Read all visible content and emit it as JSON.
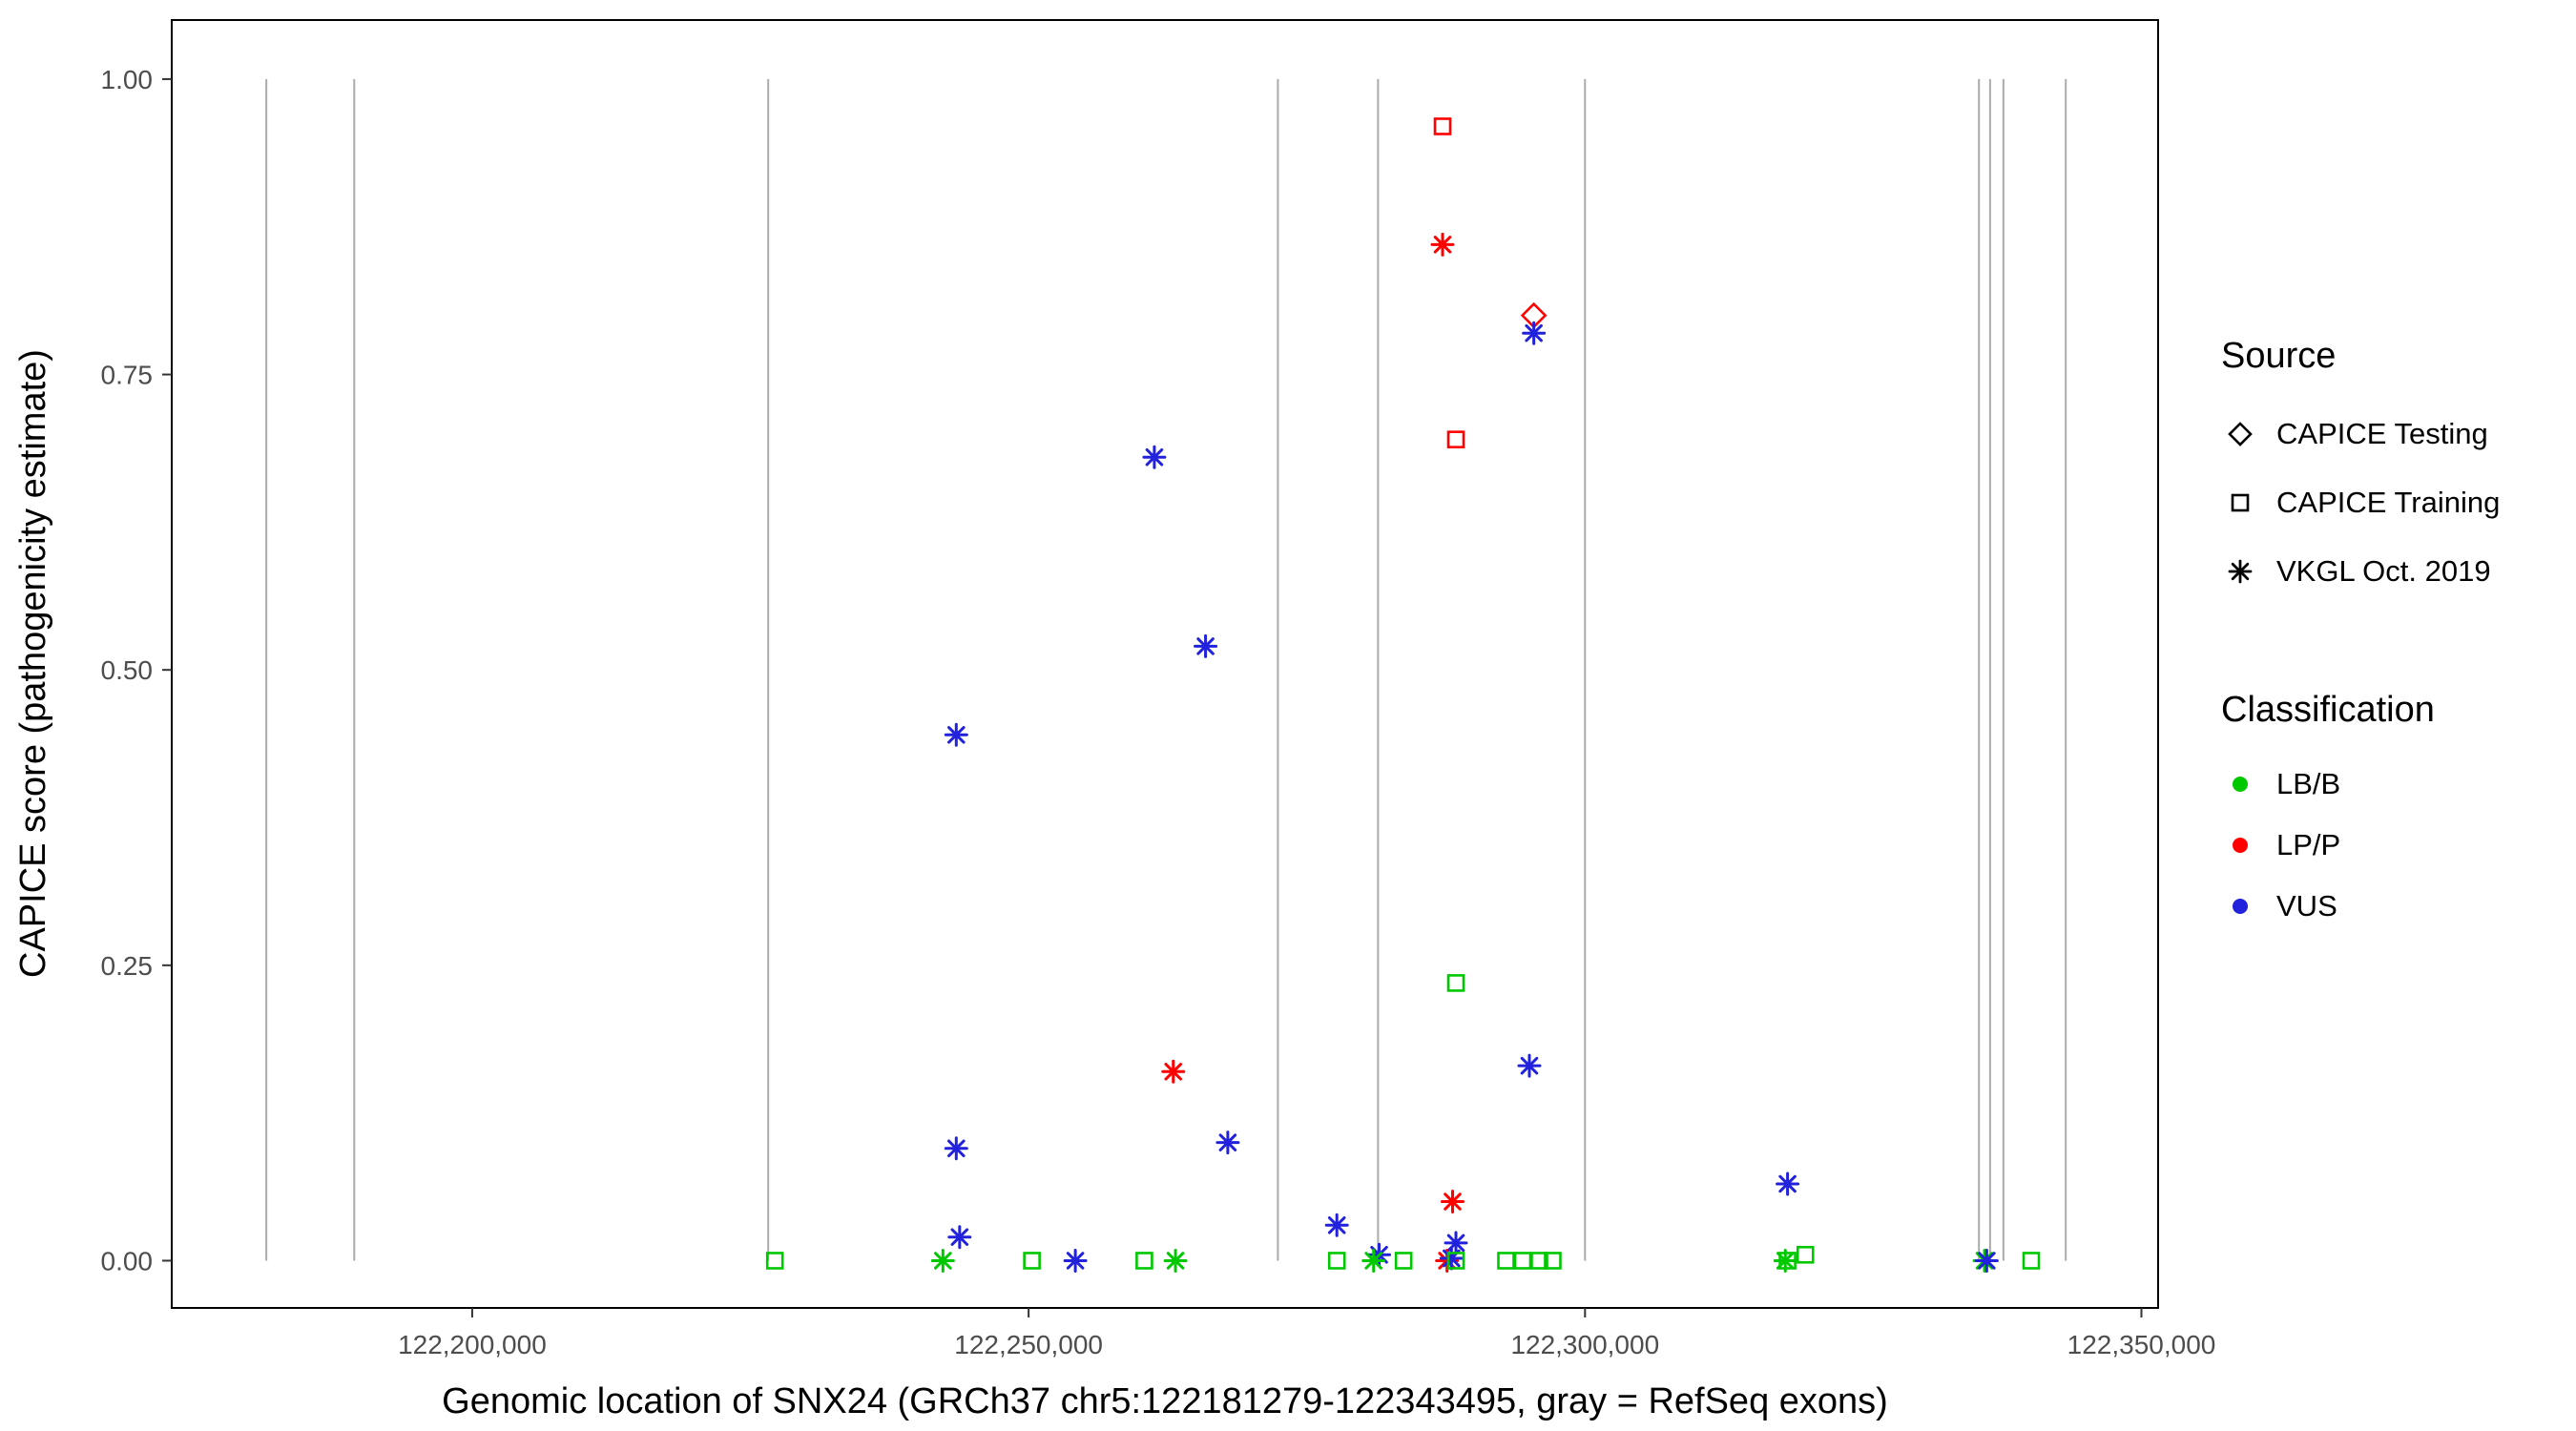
{
  "figure": {
    "xlabel": "Genomic location of SNX24 (GRCh37 chr5:122181279-122343495, gray = RefSeq exons)",
    "ylabel": "CAPICE score (pathogenicity estimate)"
  },
  "legend": {
    "source": {
      "title": "Source",
      "items": [
        {
          "label": "CAPICE Testing",
          "shape": "diamond"
        },
        {
          "label": "CAPICE Training",
          "shape": "square"
        },
        {
          "label": "VKGL Oct. 2019",
          "shape": "asterisk"
        }
      ]
    },
    "classification": {
      "title": "Classification",
      "items": [
        {
          "label": "LB/B",
          "color": "#00C800"
        },
        {
          "label": "LP/P",
          "color": "#FF0000"
        },
        {
          "label": "VUS",
          "color": "#2222DD"
        }
      ]
    }
  },
  "chart_data": {
    "type": "scatter",
    "title": "",
    "xlabel": "Genomic location of SNX24 (GRCh37 chr5:122181279-122343495, gray = RefSeq exons)",
    "ylabel": "CAPICE score (pathogenicity estimate)",
    "xlim": [
      122173000,
      122351500
    ],
    "ylim": [
      -0.04,
      1.05
    ],
    "grid": false,
    "legend_position": "right",
    "x_ticks": [
      {
        "value": 122200000,
        "label": "122,200,000"
      },
      {
        "value": 122250000,
        "label": "122,250,000"
      },
      {
        "value": 122300000,
        "label": "122,300,000"
      },
      {
        "value": 122350000,
        "label": "122,350,000"
      }
    ],
    "y_ticks": [
      {
        "value": 0.0,
        "label": "0.00"
      },
      {
        "value": 0.25,
        "label": "0.25"
      },
      {
        "value": 0.5,
        "label": "0.50"
      },
      {
        "value": 0.75,
        "label": "0.75"
      },
      {
        "value": 1.0,
        "label": "1.00"
      }
    ],
    "exon_lines": {
      "color": "#ABABAB",
      "y_extent": [
        0,
        1
      ],
      "positions": [
        122181500,
        122189400,
        122226600,
        122272400,
        122281400,
        122300000,
        122335400,
        122336400,
        122337600,
        122343200
      ]
    },
    "colors": {
      "LB/B": "#00C800",
      "LP/P": "#FF0000",
      "VUS": "#2222DD"
    },
    "shapes": {
      "CAPICE Testing": "diamond",
      "CAPICE Training": "square",
      "VKGL Oct. 2019": "asterisk"
    },
    "points": [
      {
        "x": 122287200,
        "y": 0.96,
        "source": "CAPICE Training",
        "classification": "LP/P"
      },
      {
        "x": 122287200,
        "y": 0.86,
        "source": "VKGL Oct. 2019",
        "classification": "LP/P"
      },
      {
        "x": 122295400,
        "y": 0.8,
        "source": "CAPICE Testing",
        "classification": "LP/P"
      },
      {
        "x": 122295400,
        "y": 0.785,
        "source": "VKGL Oct. 2019",
        "classification": "VUS"
      },
      {
        "x": 122288400,
        "y": 0.695,
        "source": "CAPICE Training",
        "classification": "LP/P"
      },
      {
        "x": 122261300,
        "y": 0.68,
        "source": "VKGL Oct. 2019",
        "classification": "VUS"
      },
      {
        "x": 122265900,
        "y": 0.52,
        "source": "VKGL Oct. 2019",
        "classification": "VUS"
      },
      {
        "x": 122243500,
        "y": 0.445,
        "source": "VKGL Oct. 2019",
        "classification": "VUS"
      },
      {
        "x": 122288400,
        "y": 0.235,
        "source": "CAPICE Training",
        "classification": "LB/B"
      },
      {
        "x": 122295000,
        "y": 0.165,
        "source": "VKGL Oct. 2019",
        "classification": "VUS"
      },
      {
        "x": 122263000,
        "y": 0.16,
        "source": "VKGL Oct. 2019",
        "classification": "LP/P"
      },
      {
        "x": 122267900,
        "y": 0.1,
        "source": "VKGL Oct. 2019",
        "classification": "VUS"
      },
      {
        "x": 122243500,
        "y": 0.095,
        "source": "VKGL Oct. 2019",
        "classification": "VUS"
      },
      {
        "x": 122318200,
        "y": 0.065,
        "source": "VKGL Oct. 2019",
        "classification": "VUS"
      },
      {
        "x": 122288100,
        "y": 0.05,
        "source": "VKGL Oct. 2019",
        "classification": "LP/P"
      },
      {
        "x": 122277700,
        "y": 0.03,
        "source": "VKGL Oct. 2019",
        "classification": "VUS"
      },
      {
        "x": 122243800,
        "y": 0.02,
        "source": "VKGL Oct. 2019",
        "classification": "VUS"
      },
      {
        "x": 122288400,
        "y": 0.015,
        "source": "VKGL Oct. 2019",
        "classification": "VUS"
      },
      {
        "x": 122281500,
        "y": 0.005,
        "source": "VKGL Oct. 2019",
        "classification": "VUS"
      },
      {
        "x": 122319800,
        "y": 0.005,
        "source": "CAPICE Training",
        "classification": "LB/B"
      },
      {
        "x": 122227200,
        "y": 0,
        "source": "CAPICE Training",
        "classification": "LB/B"
      },
      {
        "x": 122242300,
        "y": 0,
        "source": "VKGL Oct. 2019",
        "classification": "LB/B"
      },
      {
        "x": 122250300,
        "y": 0,
        "source": "CAPICE Training",
        "classification": "LB/B"
      },
      {
        "x": 122254200,
        "y": 0,
        "source": "VKGL Oct. 2019",
        "classification": "VUS"
      },
      {
        "x": 122260400,
        "y": 0,
        "source": "CAPICE Training",
        "classification": "LB/B"
      },
      {
        "x": 122263200,
        "y": 0,
        "source": "VKGL Oct. 2019",
        "classification": "LB/B"
      },
      {
        "x": 122277700,
        "y": 0,
        "source": "CAPICE Training",
        "classification": "LB/B"
      },
      {
        "x": 122281000,
        "y": 0,
        "source": "VKGL Oct. 2019",
        "classification": "LB/B"
      },
      {
        "x": 122283700,
        "y": 0,
        "source": "CAPICE Training",
        "classification": "LB/B"
      },
      {
        "x": 122287600,
        "y": 0,
        "source": "VKGL Oct. 2019",
        "classification": "LP/P"
      },
      {
        "x": 122288000,
        "y": 0.002,
        "source": "VKGL Oct. 2019",
        "classification": "VUS"
      },
      {
        "x": 122288400,
        "y": 0,
        "source": "CAPICE Training",
        "classification": "LB/B"
      },
      {
        "x": 122292900,
        "y": 0,
        "source": "CAPICE Training",
        "classification": "LB/B"
      },
      {
        "x": 122294400,
        "y": 0,
        "source": "CAPICE Training",
        "classification": "LB/B"
      },
      {
        "x": 122295900,
        "y": 0,
        "source": "CAPICE Training",
        "classification": "LB/B"
      },
      {
        "x": 122297100,
        "y": 0,
        "source": "CAPICE Training",
        "classification": "LB/B"
      },
      {
        "x": 122318000,
        "y": 0,
        "source": "VKGL Oct. 2019",
        "classification": "LB/B"
      },
      {
        "x": 122318200,
        "y": 0,
        "source": "CAPICE Training",
        "classification": "LB/B"
      },
      {
        "x": 122335900,
        "y": 0,
        "source": "VKGL Oct. 2019",
        "classification": "LB/B"
      },
      {
        "x": 122336100,
        "y": 0,
        "source": "VKGL Oct. 2019",
        "classification": "VUS"
      },
      {
        "x": 122340100,
        "y": 0,
        "source": "CAPICE Training",
        "classification": "LB/B"
      }
    ]
  }
}
